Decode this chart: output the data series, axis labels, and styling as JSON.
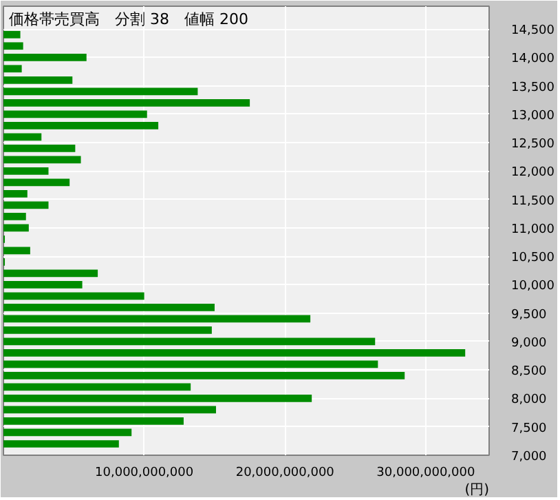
{
  "chart_data": {
    "type": "bar",
    "orientation": "horizontal",
    "title": "価格帯売買高　分割 38　値幅 200",
    "xlabel": "(円)",
    "x": [
      7200,
      7400,
      7600,
      7800,
      8000,
      8200,
      8400,
      8600,
      8800,
      9000,
      9200,
      9400,
      9600,
      9800,
      10000,
      10200,
      10400,
      10600,
      10800,
      11000,
      11200,
      11400,
      11600,
      11800,
      12000,
      12200,
      12400,
      12600,
      12800,
      13000,
      13200,
      13400,
      13600,
      13800,
      14000,
      14200,
      14400
    ],
    "values": [
      8200000000,
      9100000000,
      12800000000,
      15100000000,
      21900000000,
      13300000000,
      28500000000,
      26600000000,
      32800000000,
      26400000000,
      14800000000,
      21800000000,
      15000000000,
      10000000000,
      5600000000,
      6700000000,
      100000000,
      1900000000,
      100000000,
      1800000000,
      1600000000,
      3200000000,
      1700000000,
      4700000000,
      3200000000,
      5500000000,
      5100000000,
      2700000000,
      11000000000,
      10200000000,
      17500000000,
      13800000000,
      4900000000,
      1300000000,
      5900000000,
      1400000000,
      1200000000
    ],
    "color": "#008c00",
    "xlim": [
      0,
      34500000000
    ],
    "xticks": [
      {
        "value": 10000000000,
        "label": "10,000,000,000"
      },
      {
        "value": 20000000000,
        "label": "20,000,000,000"
      },
      {
        "value": 30000000000,
        "label": "30,000,000,000"
      }
    ],
    "ylim": [
      7000,
      14900
    ],
    "yticks": [
      {
        "value": 7000,
        "label": "7,000"
      },
      {
        "value": 7500,
        "label": "7,500"
      },
      {
        "value": 8000,
        "label": "8,000"
      },
      {
        "value": 8500,
        "label": "8,500"
      },
      {
        "value": 9000,
        "label": "9,000"
      },
      {
        "value": 9500,
        "label": "9,500"
      },
      {
        "value": 10000,
        "label": "10,000"
      },
      {
        "value": 10500,
        "label": "10,500"
      },
      {
        "value": 11000,
        "label": "11,000"
      },
      {
        "value": 11500,
        "label": "11,500"
      },
      {
        "value": 12000,
        "label": "12,000"
      },
      {
        "value": 12500,
        "label": "12,500"
      },
      {
        "value": 13000,
        "label": "13,000"
      },
      {
        "value": 13500,
        "label": "13,500"
      },
      {
        "value": 14000,
        "label": "14,000"
      },
      {
        "value": 14500,
        "label": "14,500"
      }
    ],
    "grid": true
  }
}
